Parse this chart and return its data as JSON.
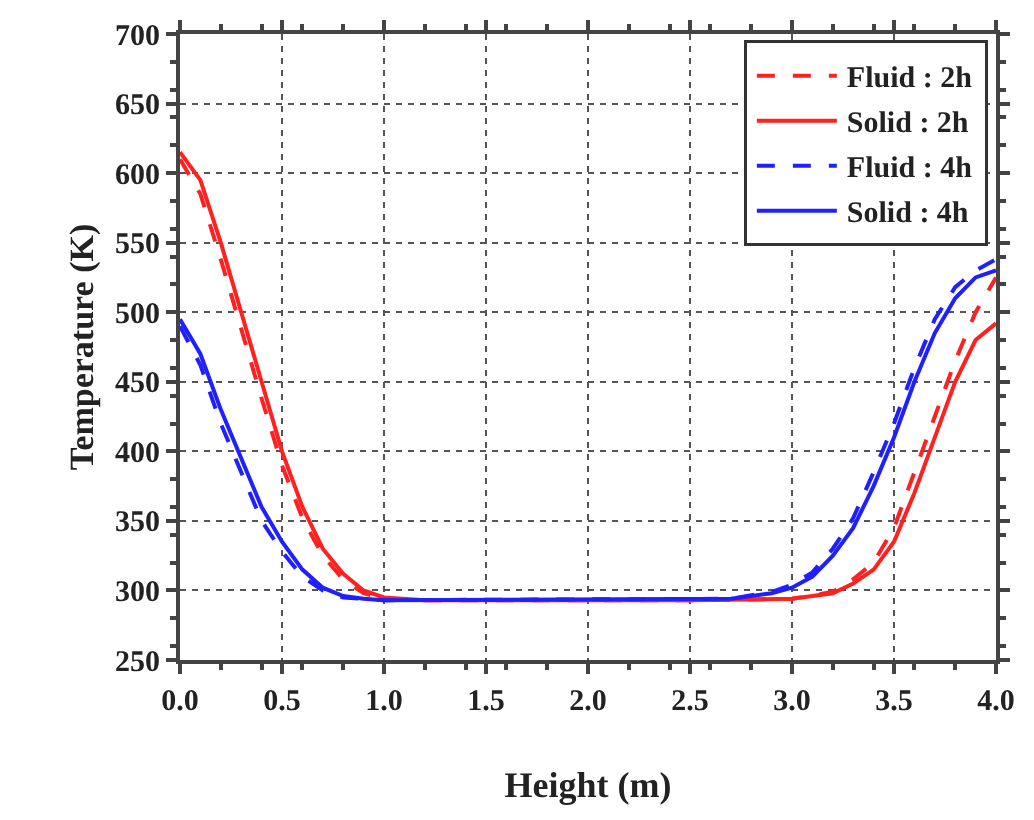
{
  "chart_data": {
    "type": "line",
    "xlabel": "Height (m)",
    "ylabel": "Temperature (K)",
    "xlim": [
      0,
      4
    ],
    "xticks": [
      {
        "value": 0,
        "label": "0.0"
      },
      0.5,
      {
        "value": 1,
        "label": "1.0"
      },
      1.5,
      {
        "value": 2,
        "label": "2.0"
      },
      2.5,
      {
        "value": 3,
        "label": "3.0"
      },
      3.5,
      {
        "value": 4,
        "label": "4.0"
      }
    ],
    "ylim": [
      250,
      700
    ],
    "yticks": [
      250,
      300,
      350,
      400,
      450,
      500,
      550,
      600,
      650,
      700
    ],
    "grid": true,
    "legend": "top right",
    "marker": "none",
    "series": [
      {
        "name": "Fluid : 2h",
        "color": "#ff2020",
        "line_style": "dashed",
        "x": [
          0,
          0.1,
          0.2,
          0.3,
          0.4,
          0.5,
          0.6,
          0.7,
          0.8,
          0.9,
          1.0,
          1.2,
          2.5,
          3.0,
          3.2,
          3.3,
          3.4,
          3.5,
          3.6,
          3.7,
          3.8,
          3.9,
          4.0
        ],
        "values": [
          610,
          585,
          538,
          488,
          438,
          390,
          352,
          325,
          308,
          298,
          294,
          293,
          293,
          294,
          299,
          308,
          320,
          345,
          385,
          425,
          465,
          500,
          525
        ]
      },
      {
        "name": "Solid : 2h",
        "color": "#ff2020",
        "line_style": "solid",
        "x": [
          0,
          0.1,
          0.2,
          0.3,
          0.4,
          0.5,
          0.6,
          0.7,
          0.8,
          0.9,
          1.0,
          1.2,
          2.5,
          3.0,
          3.2,
          3.3,
          3.4,
          3.5,
          3.6,
          3.7,
          3.8,
          3.9,
          4.0
        ],
        "values": [
          615,
          595,
          550,
          500,
          450,
          400,
          360,
          330,
          312,
          300,
          295,
          293,
          293,
          294,
          298,
          305,
          315,
          335,
          370,
          410,
          450,
          480,
          492
        ]
      },
      {
        "name": "Fluid : 4h",
        "color": "#2020ff",
        "line_style": "dashed",
        "x": [
          0,
          0.1,
          0.2,
          0.3,
          0.4,
          0.5,
          0.6,
          0.7,
          0.8,
          1.0,
          2.7,
          2.9,
          3.0,
          3.1,
          3.2,
          3.3,
          3.4,
          3.5,
          3.6,
          3.7,
          3.8,
          3.9,
          4.0
        ],
        "values": [
          490,
          462,
          420,
          385,
          350,
          328,
          310,
          300,
          295,
          293,
          294,
          299,
          304,
          313,
          330,
          352,
          385,
          420,
          460,
          495,
          518,
          530,
          538
        ]
      },
      {
        "name": "Solid : 4h",
        "color": "#2020ff",
        "line_style": "solid",
        "x": [
          0,
          0.1,
          0.2,
          0.3,
          0.4,
          0.5,
          0.6,
          0.7,
          0.8,
          0.9,
          1.0,
          2.7,
          2.9,
          3.0,
          3.1,
          3.2,
          3.3,
          3.4,
          3.5,
          3.6,
          3.7,
          3.8,
          3.9,
          4.0
        ],
        "values": [
          495,
          470,
          430,
          395,
          360,
          335,
          315,
          302,
          296,
          294,
          293,
          294,
          298,
          302,
          310,
          325,
          345,
          375,
          410,
          450,
          485,
          510,
          525,
          530
        ]
      }
    ]
  }
}
